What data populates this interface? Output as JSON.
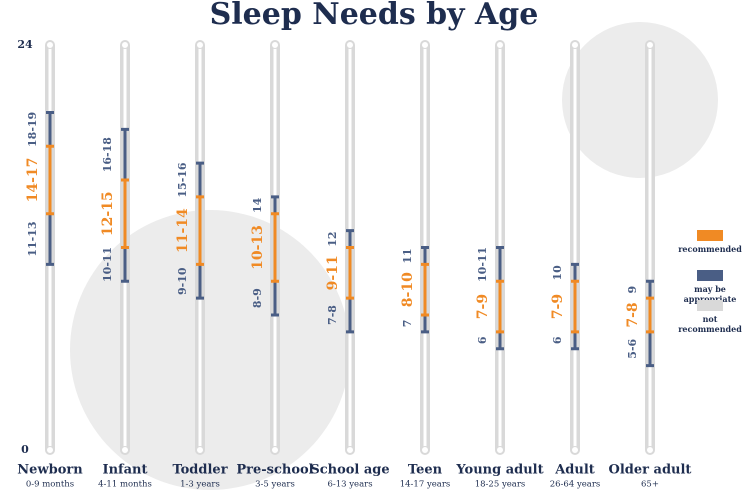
{
  "chart_data": {
    "type": "range",
    "title": "Sleep Needs by Age",
    "ylim": [
      0,
      24
    ],
    "yticks": [
      0,
      24
    ],
    "categories": [
      "Newborn",
      "Infant",
      "Toddler",
      "Pre-school",
      "School age",
      "Teen",
      "Young adult",
      "Adult",
      "Older adult"
    ],
    "subtitles": [
      "0-9 months",
      "4-11 months",
      "1-3 years",
      "3-5 years",
      "6-13 years",
      "14-17 years",
      "18-25 years",
      "26-64 years",
      "65+"
    ],
    "may_be_appropriate": [
      [
        11,
        20
      ],
      [
        10,
        19
      ],
      [
        9,
        17
      ],
      [
        8,
        15
      ],
      [
        7,
        13
      ],
      [
        7,
        12
      ],
      [
        6,
        12
      ],
      [
        6,
        11
      ],
      [
        5,
        10
      ]
    ],
    "recommended": [
      [
        14,
        18
      ],
      [
        12,
        16
      ],
      [
        11,
        15
      ],
      [
        10,
        14
      ],
      [
        9,
        12
      ],
      [
        8,
        11
      ],
      [
        7,
        10
      ],
      [
        7,
        10
      ],
      [
        7,
        9
      ]
    ],
    "upper_labels": [
      "18-19",
      "16-18",
      "15-16",
      "14",
      "12",
      "11",
      "10-11",
      "10",
      "9"
    ],
    "recommended_labels": [
      "14-17",
      "12-15",
      "11-14",
      "10-13",
      "9-11",
      "8-10",
      "7-9",
      "7-9",
      "7-8"
    ],
    "lower_labels": [
      "11-13",
      "10-11",
      "9-10",
      "8-9",
      "7-8",
      "7",
      "6",
      "6",
      "5-6"
    ],
    "legend": [
      {
        "name": "recommended",
        "color": "#f08a24"
      },
      {
        "name": "may be appropriate",
        "color": "#4a5e85"
      },
      {
        "name": "not recommended",
        "color": "#d9d9d9"
      }
    ]
  }
}
